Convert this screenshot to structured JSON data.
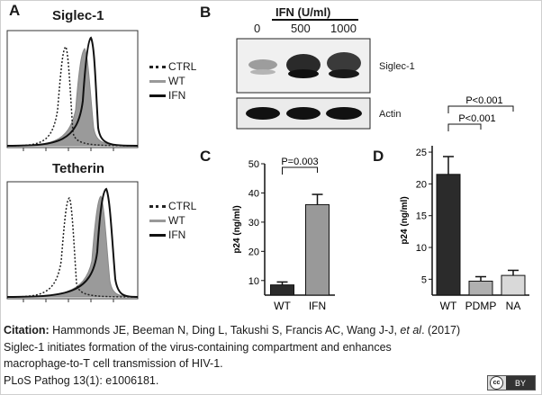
{
  "panels": {
    "a": {
      "letter": "A",
      "top_title": "Siglec-1",
      "bottom_title": "Tetherin",
      "legend": [
        "CTRL",
        "WT",
        "IFN"
      ]
    },
    "b": {
      "letter": "B",
      "header": "IFN (U/ml)",
      "lanes": [
        "0",
        "500",
        "1000"
      ],
      "band_labels": [
        "Siglec-1",
        "Actin"
      ]
    },
    "c": {
      "letter": "C"
    },
    "d": {
      "letter": "D"
    }
  },
  "chart_data": [
    {
      "type": "bar",
      "panel": "C",
      "categories": [
        "WT",
        "IFN"
      ],
      "values": [
        8.5,
        36
      ],
      "errors": [
        1,
        3.5
      ],
      "colors": [
        "#2b2b2b",
        "#999999"
      ],
      "ylabel": "p24 (ng/ml)",
      "yticks": [
        10,
        20,
        30,
        40,
        50
      ],
      "ylim": [
        5,
        50
      ],
      "annotations": [
        "P=0.003"
      ]
    },
    {
      "type": "bar",
      "panel": "D",
      "categories": [
        "WT",
        "PDMP",
        "NA"
      ],
      "values": [
        21.5,
        4.7,
        5.6
      ],
      "errors": [
        2.8,
        0.7,
        0.8
      ],
      "colors": [
        "#2b2b2b",
        "#b0b0b0",
        "#d9d9d9"
      ],
      "ylabel": "p24 (ng/ml)",
      "yticks": [
        5,
        10,
        15,
        20,
        25
      ],
      "ylim": [
        2.5,
        26
      ],
      "annotations": [
        "P<0.001",
        "P<0.001"
      ]
    }
  ],
  "caption": {
    "label": "Citation:",
    "authors": " Hammonds JE, Beeman N, Ding L, Takushi S, Francis AC, Wang J-J, ",
    "etal": "et al",
    "year": ". (2017)",
    "title_line1": "Siglec-1 initiates formation of the virus-containing compartment and enhances",
    "title_line2": "macrophage-to-T cell transmission of HIV-1.",
    "journal": "PLoS Pathog 13(1): e1006181."
  },
  "license": {
    "cc": "cc",
    "by": "BY"
  }
}
